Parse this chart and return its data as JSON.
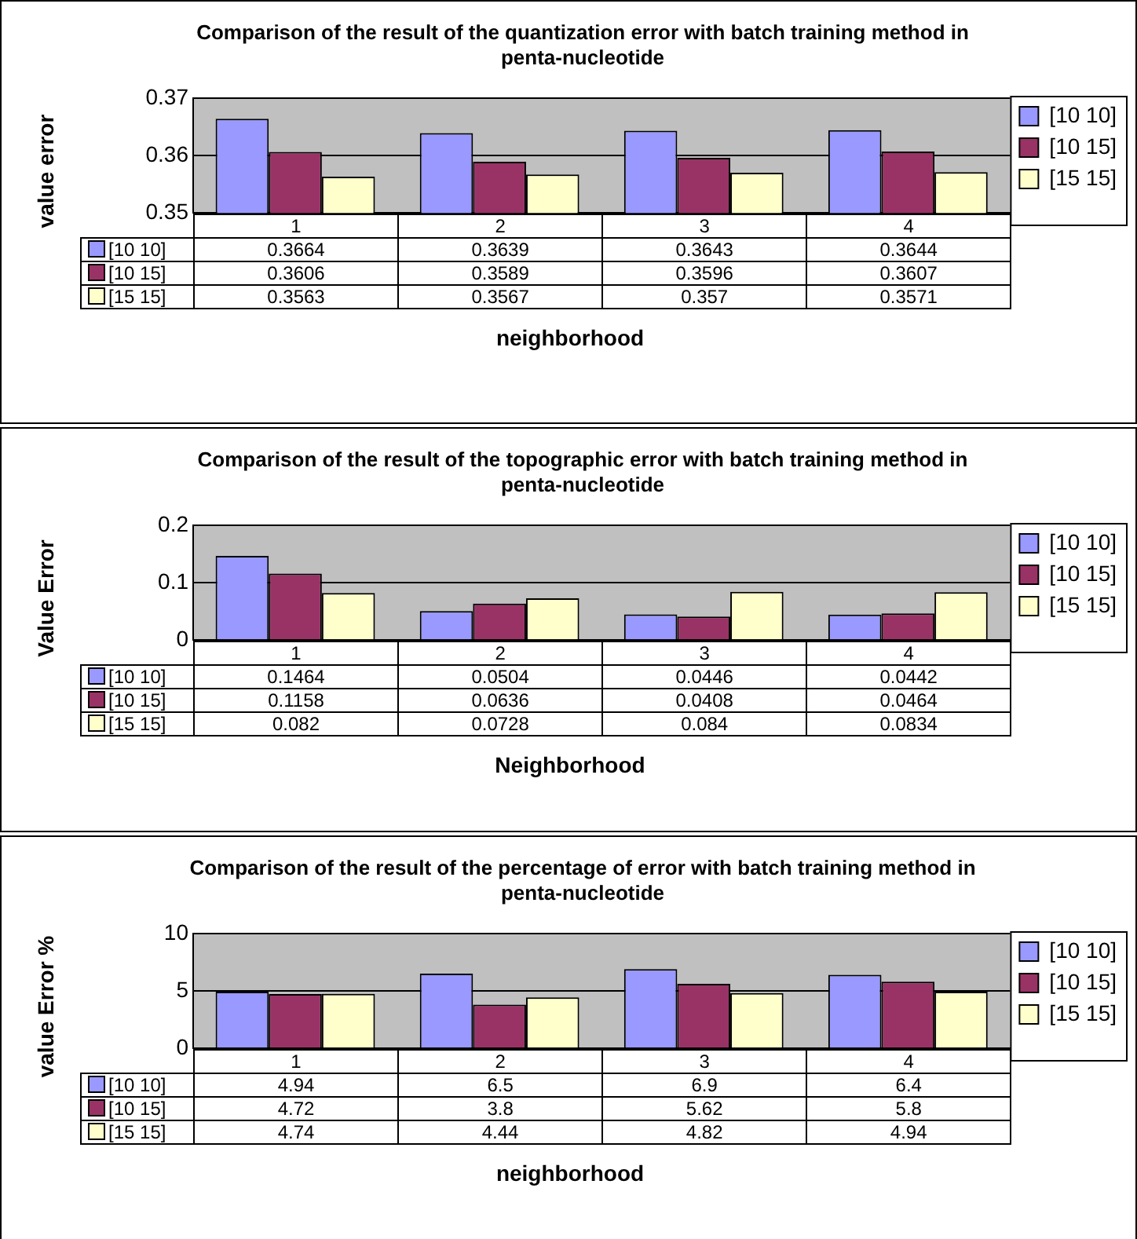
{
  "chart_data": [
    {
      "type": "bar",
      "title": "Comparison of the result of the quantization error with batch training method in penta-nucleotide",
      "xlabel": "neighborhood",
      "ylabel": "value error",
      "categories": [
        "1",
        "2",
        "3",
        "4"
      ],
      "series": [
        {
          "name": "[10 10]",
          "color": "#9999ff",
          "values": [
            0.3664,
            0.3639,
            0.3643,
            0.3644
          ]
        },
        {
          "name": "[10 15]",
          "color": "#993366",
          "values": [
            0.3606,
            0.3589,
            0.3596,
            0.3607
          ]
        },
        {
          "name": "[15 15]",
          "color": "#ffffcc",
          "values": [
            0.3563,
            0.3567,
            0.357,
            0.3571
          ]
        }
      ],
      "ylim": [
        0.35,
        0.37
      ],
      "yticks": [
        0.35,
        0.36,
        0.37
      ],
      "grid": "y",
      "legend": "right",
      "data_labels": true
    },
    {
      "type": "bar",
      "title": "Comparison of the result of the topographic error with batch training method in penta-nucleotide",
      "xlabel": "Neighborhood",
      "ylabel": "Value Error",
      "categories": [
        "1",
        "2",
        "3",
        "4"
      ],
      "series": [
        {
          "name": "[10 10]",
          "color": "#9999ff",
          "values": [
            0.1464,
            0.0504,
            0.0446,
            0.0442
          ]
        },
        {
          "name": "[10 15]",
          "color": "#993366",
          "values": [
            0.1158,
            0.0636,
            0.0408,
            0.0464
          ]
        },
        {
          "name": "[15 15]",
          "color": "#ffffcc",
          "values": [
            0.082,
            0.0728,
            0.084,
            0.0834
          ]
        }
      ],
      "ylim": [
        0,
        0.2
      ],
      "yticks": [
        0,
        0.1,
        0.2
      ],
      "grid": "y",
      "legend": "right",
      "data_labels": true
    },
    {
      "type": "bar",
      "title": "Comparison of the result of the percentage of error with batch training method in penta-nucleotide",
      "xlabel": "neighborhood",
      "ylabel": "value Error %",
      "categories": [
        "1",
        "2",
        "3",
        "4"
      ],
      "series": [
        {
          "name": "[10 10]",
          "color": "#9999ff",
          "values": [
            4.94,
            6.5,
            6.9,
            6.4
          ]
        },
        {
          "name": "[10 15]",
          "color": "#993366",
          "values": [
            4.72,
            3.8,
            5.62,
            5.8
          ]
        },
        {
          "name": "[15 15]",
          "color": "#ffffcc",
          "values": [
            4.74,
            4.44,
            4.82,
            4.94
          ]
        }
      ],
      "ylim": [
        0,
        10
      ],
      "yticks": [
        0,
        5,
        10
      ],
      "grid": "y",
      "legend": "right",
      "data_labels": true
    }
  ]
}
